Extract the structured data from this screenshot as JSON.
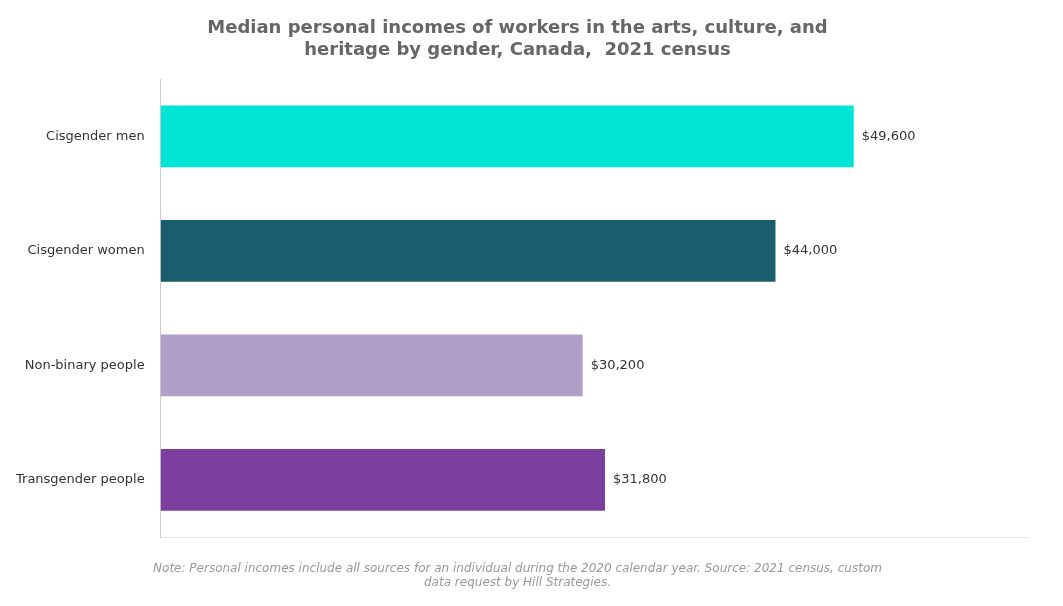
{
  "chart_data": {
    "type": "bar",
    "orientation": "horizontal",
    "title": "Median personal incomes of workers in the arts, culture, and\nheritage by gender, Canada,  2021 census",
    "annotation": "Note: Personal incomes include all sources for an individual during the 2020 calendar year. Source: 2021 census, custom\ndata request by Hill Strategies.",
    "categories": [
      "Cisgender men",
      "Cisgender women",
      "Non-binary people",
      "Transgender people"
    ],
    "values": [
      49600,
      44000,
      30200,
      31800
    ],
    "value_labels": [
      "$49,600",
      "$44,000",
      "$30,200",
      "$31,800"
    ],
    "colors": [
      "#00E5D4",
      "#1A5E6E",
      "#B0A0C8",
      "#7B3FA0"
    ],
    "xlim": [
      0,
      62000
    ],
    "grid": false,
    "data_labels": true,
    "tick_labels": "y"
  }
}
